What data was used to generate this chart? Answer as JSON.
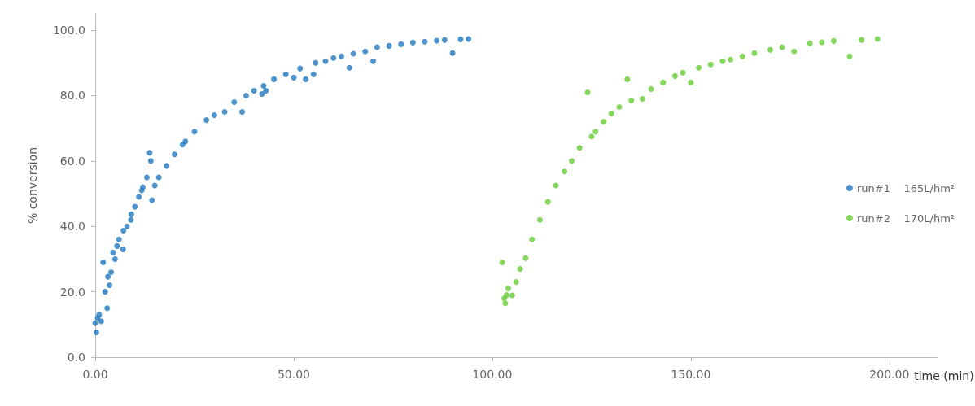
{
  "chart_data": {
    "type": "scatter",
    "xlabel": "time (min)",
    "ylabel": "% conversion",
    "xlim": [
      0,
      212
    ],
    "ylim": [
      0,
      105
    ],
    "xticks": [
      {
        "value": 0,
        "label": "0.00"
      },
      {
        "value": 50,
        "label": "50.00"
      },
      {
        "value": 100,
        "label": "100.00"
      },
      {
        "value": 150,
        "label": "150.00"
      },
      {
        "value": 200,
        "label": "200.00"
      }
    ],
    "yticks": [
      {
        "value": 0,
        "label": "0.0"
      },
      {
        "value": 20,
        "label": "20.0"
      },
      {
        "value": 40,
        "label": "40.0"
      },
      {
        "value": 60,
        "label": "60.0"
      },
      {
        "value": 80,
        "label": "80.0"
      },
      {
        "value": 100,
        "label": "100.0"
      }
    ],
    "grid": false,
    "legend": "right",
    "marker": "circle",
    "series": [
      {
        "name": "run#1    165L/hm²",
        "color": "#1f78c1",
        "x": [
          0,
          0.3,
          0.6,
          1,
          1.5,
          2,
          2.5,
          3,
          3.2,
          3.6,
          4,
          4.5,
          5,
          5.5,
          6,
          7,
          7.1,
          8,
          9,
          9.1,
          10,
          11,
          11.7,
          12,
          13,
          13.7,
          14,
          14.3,
          15,
          16,
          18,
          20,
          22,
          22.7,
          25,
          28,
          30,
          32.6,
          35,
          37,
          38,
          40,
          42,
          42.4,
          43,
          45,
          48,
          50,
          51.6,
          53,
          55,
          55.5,
          58,
          60,
          62,
          64,
          65,
          68,
          70,
          71,
          74,
          77,
          80,
          83,
          86,
          88,
          90,
          92,
          94
        ],
        "values": [
          10.4,
          7.6,
          12,
          13,
          11,
          29,
          20,
          15,
          24.6,
          22,
          26,
          32,
          30,
          34,
          36,
          33,
          38.7,
          40,
          42,
          43.7,
          46,
          49,
          51,
          52,
          55,
          62.5,
          60,
          48,
          52.5,
          55,
          58.5,
          62,
          65,
          66,
          69,
          72.5,
          74,
          75,
          78,
          75,
          80,
          81.5,
          80.5,
          83,
          81.5,
          85,
          86.5,
          85.5,
          88.3,
          85,
          86.5,
          90,
          90.5,
          91.5,
          92,
          88.5,
          92.8,
          93.5,
          90.5,
          94.8,
          95.2,
          95.7,
          96.2,
          96.5,
          96.8,
          97,
          93,
          97.2,
          97.3
        ]
      },
      {
        "name": "run#2    170L/hm²",
        "color": "#66cc33",
        "x": [
          102.5,
          103,
          103.3,
          103.6,
          104,
          105,
          106,
          107,
          108.4,
          110,
          112,
          114,
          116,
          118.2,
          120,
          122,
          124,
          125,
          126,
          128,
          130,
          132,
          134,
          135,
          137.8,
          140,
          143,
          146,
          148,
          150,
          152,
          155,
          158,
          160,
          163,
          166,
          170,
          173,
          176,
          180,
          183,
          186,
          190,
          193,
          197
        ],
        "values": [
          29,
          18,
          16.5,
          19,
          21,
          18.9,
          23,
          27,
          30.3,
          36,
          42,
          47.5,
          52.5,
          56.8,
          60,
          64,
          81,
          67.5,
          69,
          72,
          74.5,
          76.5,
          85,
          78.5,
          79,
          82,
          84,
          86,
          87,
          84,
          88.5,
          89.5,
          90.5,
          91,
          92,
          93,
          94,
          94.8,
          93.5,
          96,
          96.3,
          96.7,
          92,
          97,
          97.3
        ]
      }
    ]
  }
}
